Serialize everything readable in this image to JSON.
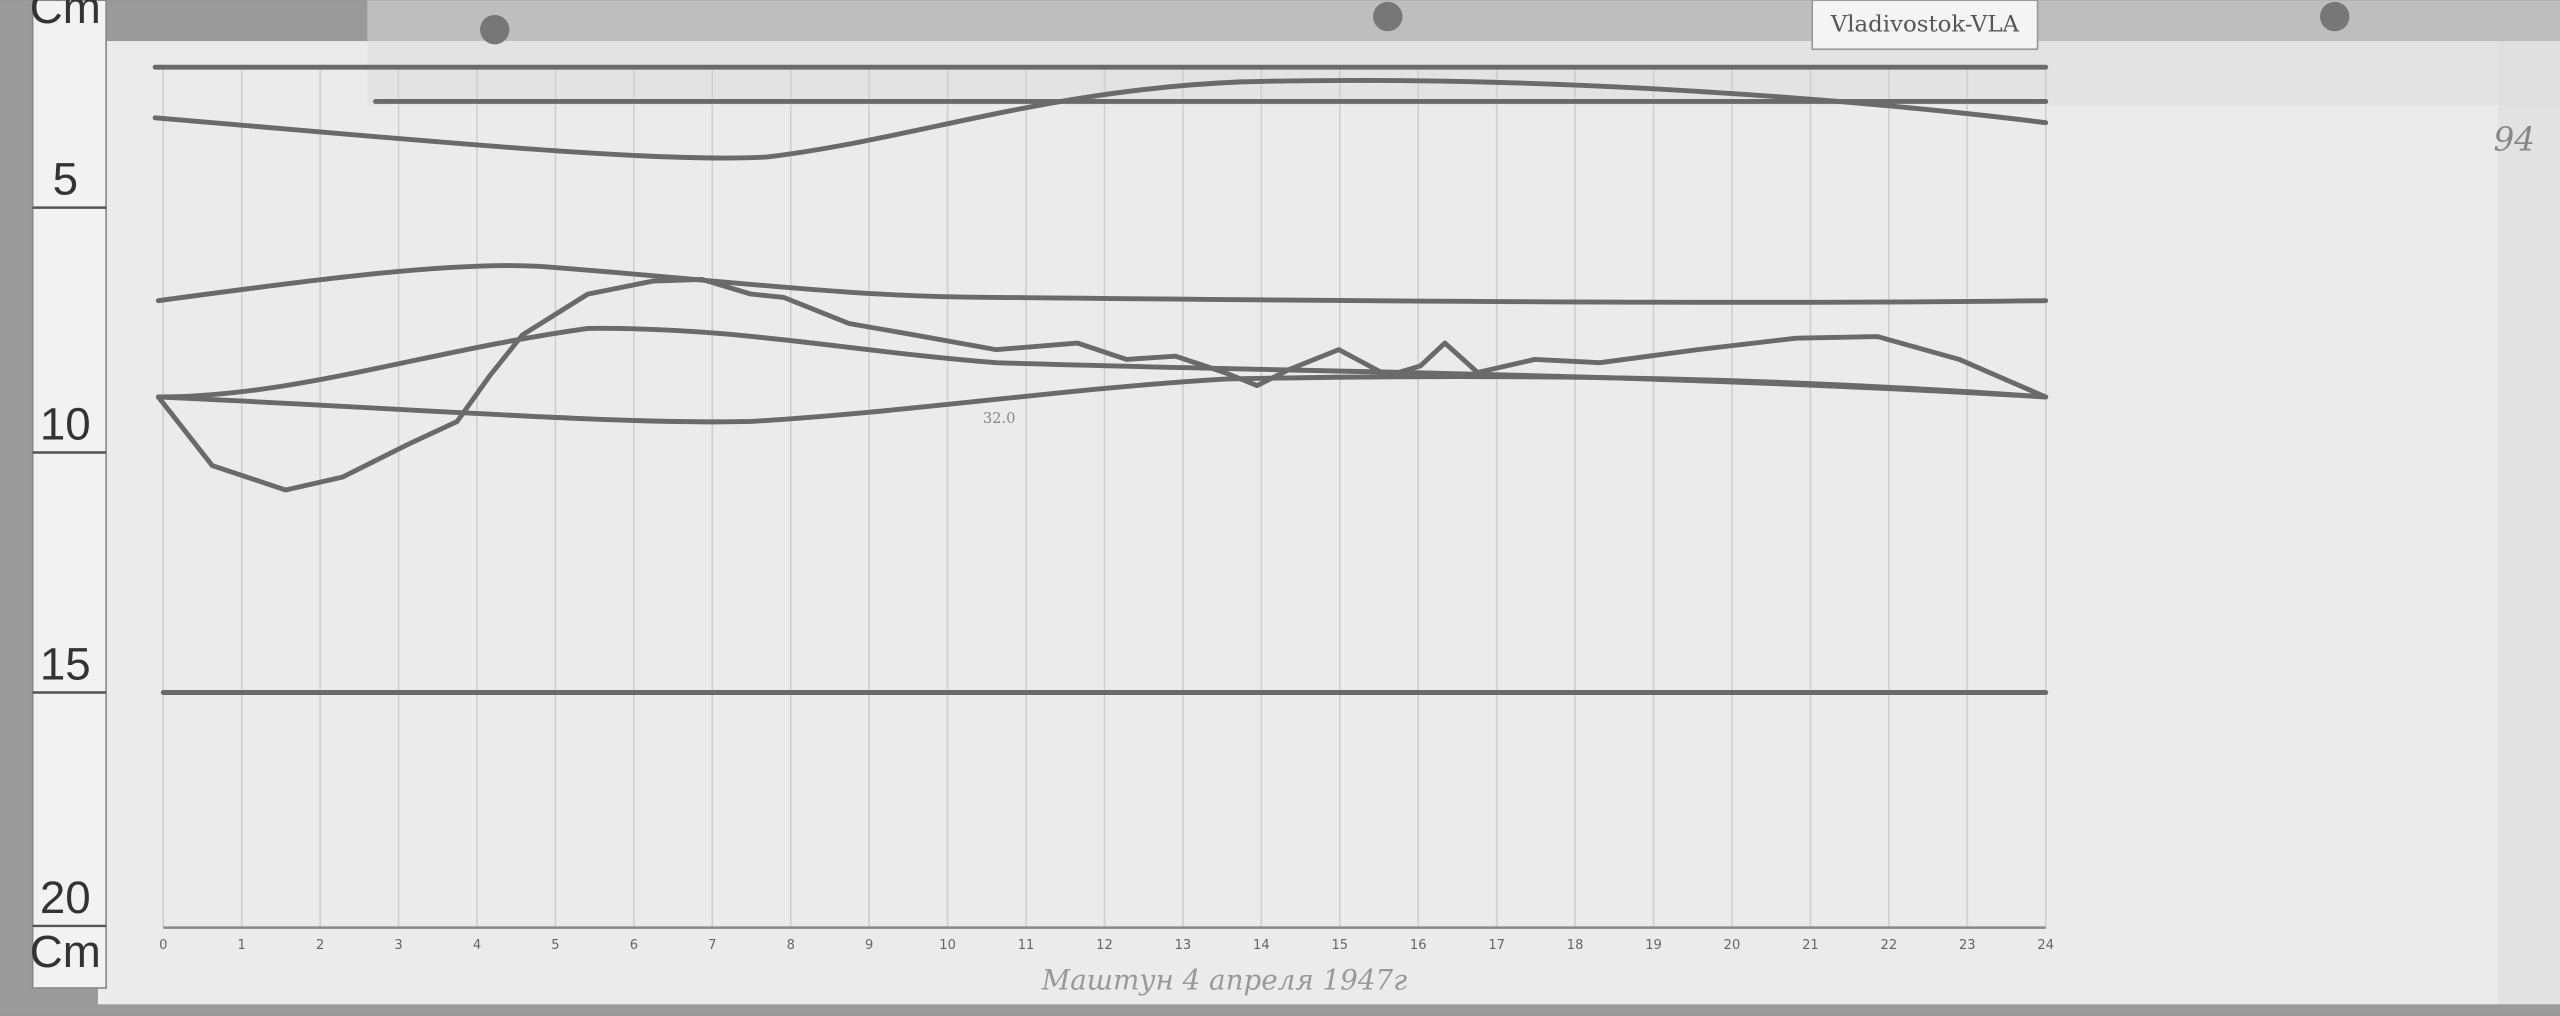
{
  "tag": "Vladivostok-VLA",
  "sheet_number": "94",
  "ruler": {
    "unit_top": "Cm",
    "marks": [
      "5",
      "10",
      "15",
      "20"
    ],
    "unit_bottom": "Cm"
  },
  "trace_labels": {
    "baseline_value": "32.0"
  },
  "hours": [
    0,
    1,
    2,
    3,
    4,
    5,
    6,
    7,
    8,
    9,
    10,
    11,
    12,
    13,
    14,
    15,
    16,
    17,
    18,
    19,
    20,
    21,
    22,
    23,
    24
  ],
  "signature": "Маштун 4 апреля 1947г"
}
